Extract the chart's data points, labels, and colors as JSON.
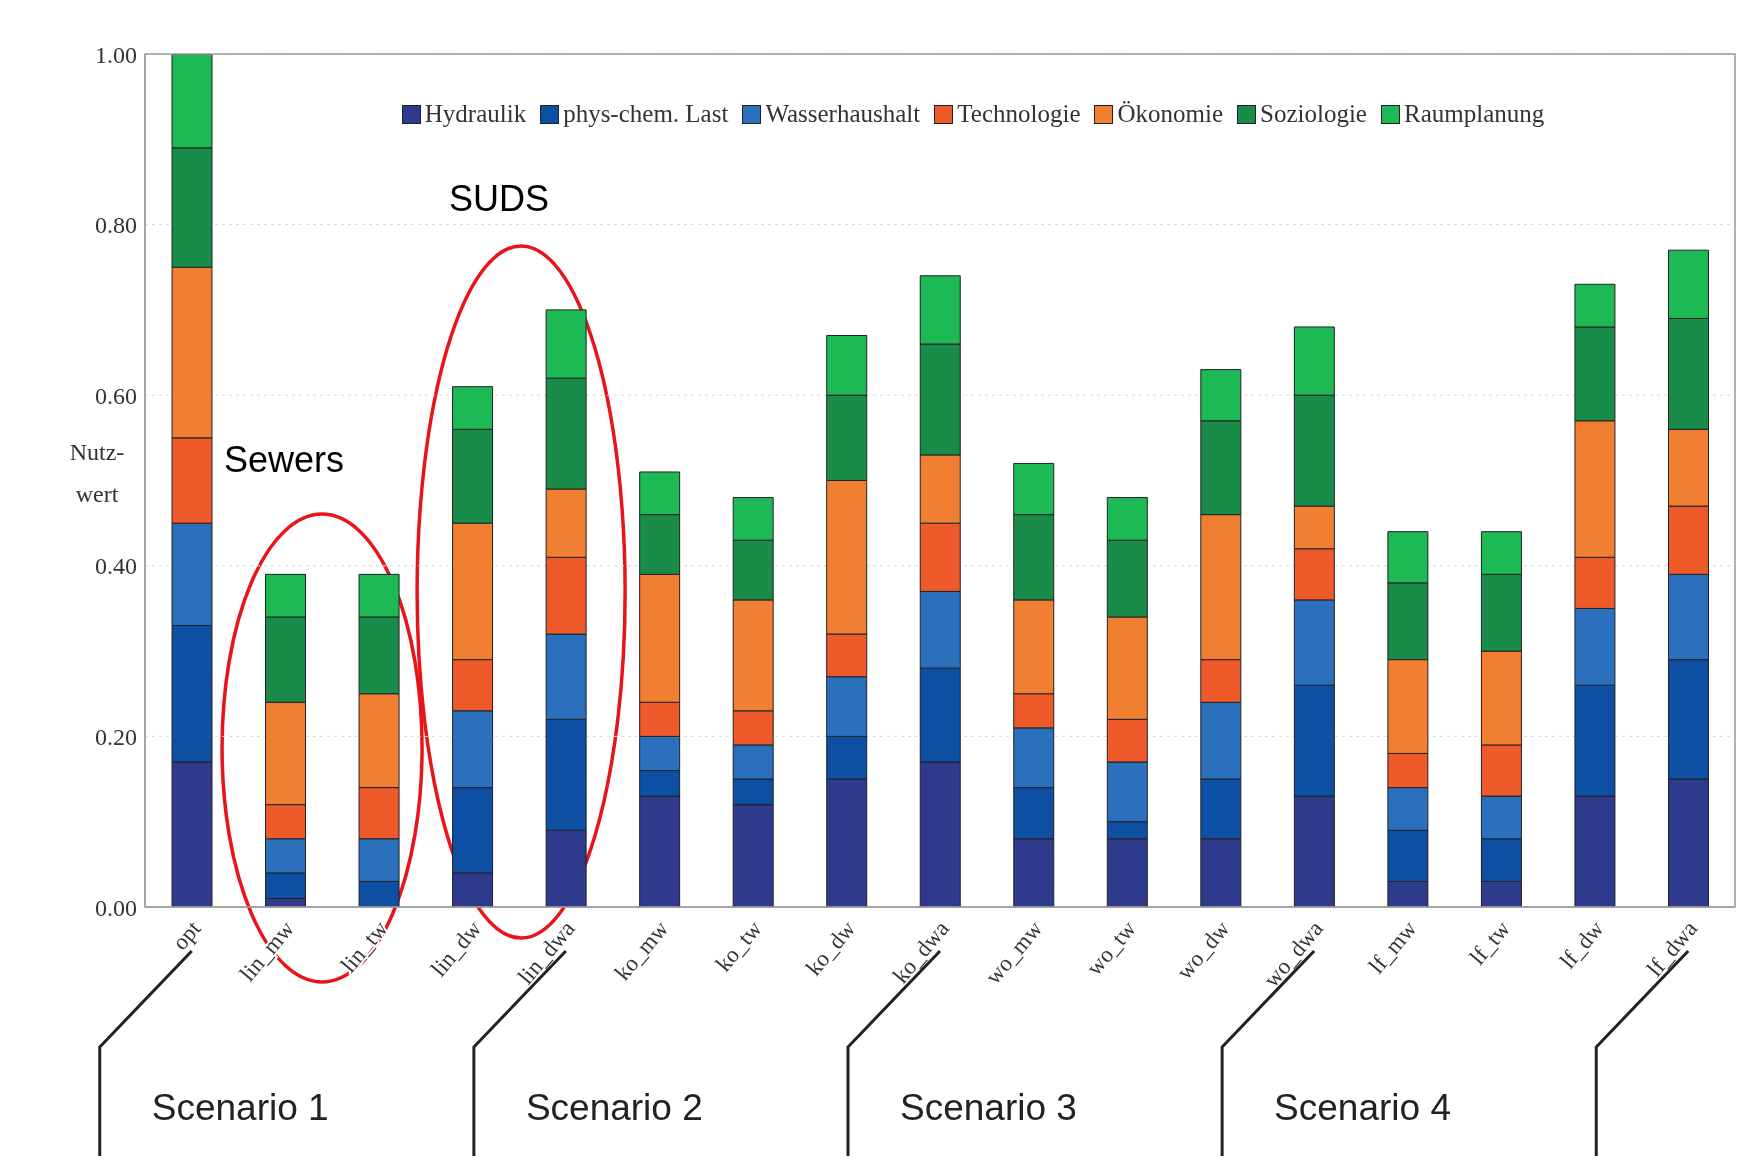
{
  "chart_data": {
    "type": "bar",
    "stacked": true,
    "ylabel": "Nutz-\nwert",
    "categories": [
      "opt",
      "lin_mw",
      "lin_tw",
      "lin_dw",
      "lin_dwa",
      "ko_mw",
      "ko_tw",
      "ko_dw",
      "ko_dwa",
      "wo_mw",
      "wo_tw",
      "wo_dw",
      "wo_dwa",
      "lf_mw",
      "lf_tw",
      "lf_dw",
      "lf_dwa"
    ],
    "series": [
      {
        "name": "Hydraulik",
        "color": "#2e3a8c",
        "values": [
          0.17,
          0.01,
          0.0,
          0.04,
          0.09,
          0.13,
          0.12,
          0.15,
          0.17,
          0.08,
          0.08,
          0.08,
          0.13,
          0.03,
          0.03,
          0.13,
          0.15
        ]
      },
      {
        "name": "phys-chem. Last",
        "color": "#0d4fa3",
        "values": [
          0.16,
          0.03,
          0.03,
          0.1,
          0.13,
          0.03,
          0.03,
          0.05,
          0.11,
          0.06,
          0.02,
          0.07,
          0.13,
          0.06,
          0.05,
          0.13,
          0.14
        ]
      },
      {
        "name": "Wasserhaushalt",
        "color": "#2a70bd",
        "values": [
          0.12,
          0.04,
          0.05,
          0.09,
          0.1,
          0.04,
          0.04,
          0.07,
          0.09,
          0.07,
          0.07,
          0.09,
          0.1,
          0.05,
          0.05,
          0.09,
          0.1
        ]
      },
      {
        "name": "Technologie",
        "color": "#ee5a2a",
        "values": [
          0.1,
          0.04,
          0.06,
          0.06,
          0.09,
          0.04,
          0.04,
          0.05,
          0.08,
          0.04,
          0.05,
          0.05,
          0.06,
          0.04,
          0.06,
          0.06,
          0.08
        ]
      },
      {
        "name": "Ökonomie",
        "color": "#f07f32",
        "values": [
          0.2,
          0.12,
          0.11,
          0.16,
          0.08,
          0.15,
          0.13,
          0.18,
          0.08,
          0.11,
          0.12,
          0.17,
          0.05,
          0.11,
          0.11,
          0.16,
          0.09
        ]
      },
      {
        "name": "Soziologie",
        "color": "#1a8c4a",
        "values": [
          0.14,
          0.1,
          0.09,
          0.11,
          0.13,
          0.07,
          0.07,
          0.1,
          0.13,
          0.1,
          0.09,
          0.11,
          0.13,
          0.09,
          0.09,
          0.11,
          0.13
        ]
      },
      {
        "name": "Raumplanung",
        "color": "#1db954",
        "values": [
          0.11,
          0.05,
          0.05,
          0.05,
          0.08,
          0.05,
          0.05,
          0.07,
          0.08,
          0.06,
          0.05,
          0.06,
          0.08,
          0.06,
          0.05,
          0.05,
          0.08
        ]
      }
    ],
    "ylim": [
      0,
      1
    ],
    "yticks": [
      {
        "value": 0,
        "label": "0.00"
      },
      {
        "value": 0.2,
        "label": "0.20"
      },
      {
        "value": 0.4,
        "label": "0.40"
      },
      {
        "value": 0.6,
        "label": "0.60"
      },
      {
        "value": 0.8,
        "label": "0.80"
      },
      {
        "value": 1,
        "label": "1.00"
      }
    ],
    "grid": "y",
    "legend": "top",
    "annotations": [
      "Sewers",
      "SUDS",
      "Scenario 1",
      "Scenario 2",
      "Scenario 3",
      "Scenario 4"
    ]
  }
}
